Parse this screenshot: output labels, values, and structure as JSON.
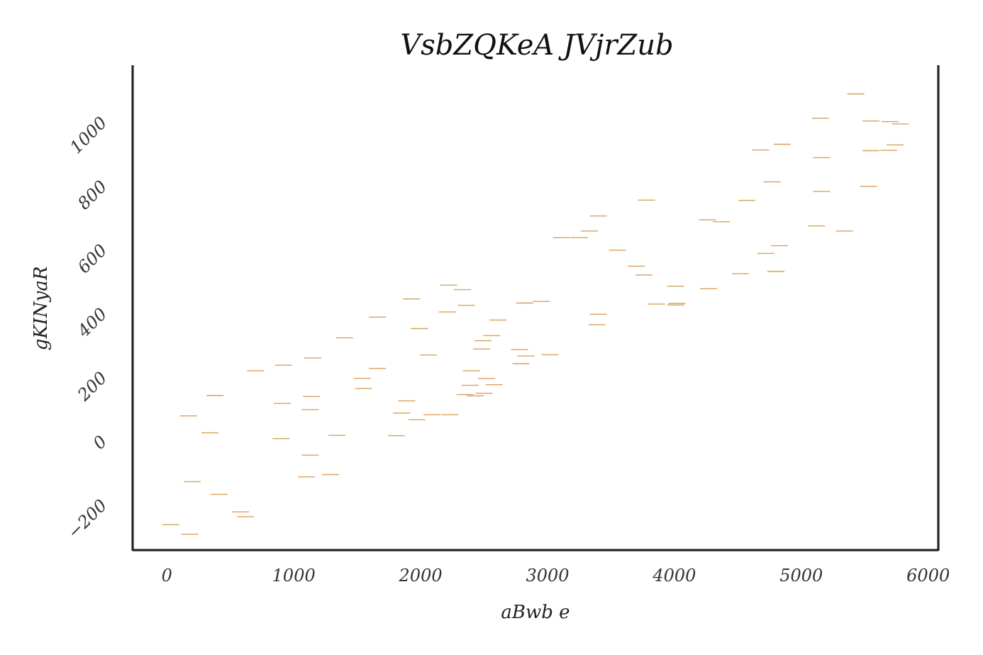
{
  "chart_data": {
    "type": "scatter",
    "title": "VsbZQKeA JVjrZub",
    "xlabel": "aBwb  e",
    "ylabel": "gKINyaR",
    "xlim": [
      -270,
      6080
    ],
    "ylim": [
      -357,
      1166
    ],
    "xticks": [
      0,
      1000,
      2000,
      3000,
      4000,
      5000,
      6000
    ],
    "yticks": [
      -200,
      0,
      200,
      400,
      600,
      800,
      1000
    ],
    "xtick_labels": [
      "0",
      "1000",
      "2000",
      "3000",
      "4000",
      "5000",
      "6000"
    ],
    "ytick_labels": [
      "−200",
      "0",
      "200",
      "400",
      "600",
      "800",
      "1000"
    ],
    "marker": "hline",
    "grid": false,
    "legend": "none",
    "color": "#d9a05b",
    "series": [
      {
        "x": [
          30,
          180,
          200,
          170,
          340,
          380,
          410,
          580,
          620,
          700,
          900,
          910,
          920,
          1100,
          1130,
          1130,
          1140,
          1150,
          1290,
          1340,
          1400,
          1540,
          1550,
          1660,
          1660,
          1810,
          1850,
          1890,
          1930,
          1970,
          1990,
          2060,
          2090,
          2220,
          2210,
          2230,
          2330,
          2350,
          2360,
          2390,
          2400,
          2430,
          2480,
          2490,
          2500,
          2520,
          2580,
          2560,
          2610,
          2780,
          2790,
          2820,
          2830,
          2950,
          3020,
          3110,
          3250,
          3330,
          3390,
          3400,
          3400,
          3550,
          3700,
          3760,
          3780,
          3860,
          4010,
          4010,
          4020,
          4260,
          4270,
          4370,
          4520,
          4570,
          4680,
          4720,
          4770,
          4800,
          4830,
          4850,
          5120,
          5150,
          5160,
          5160,
          5340,
          5430,
          5530,
          5550,
          5550,
          5690,
          5700,
          5740,
          5780
        ],
        "y": [
          -275,
          -305,
          -140,
          66,
          13,
          130,
          -180,
          -235,
          -250,
          208,
          -5,
          105,
          225,
          -125,
          -57,
          86,
          127,
          248,
          -118,
          5,
          311,
          184,
          152,
          215,
          376,
          4,
          75,
          113,
          433,
          54,
          340,
          257,
          70,
          476,
          392,
          70,
          462,
          133,
          413,
          162,
          208,
          129,
          276,
          302,
          137,
          183,
          164,
          318,
          367,
          274,
          230,
          420,
          254,
          425,
          258,
          625,
          625,
          646,
          352,
          385,
          693,
          586,
          536,
          508,
          743,
          417,
          414,
          473,
          419,
          681,
          465,
          675,
          512,
          742,
          900,
          576,
          800,
          519,
          600,
          918,
          662,
          1000,
          770,
          876,
          646,
          1076,
          786,
          898,
          991,
          899,
          989,
          916,
          982
        ]
      }
    ]
  }
}
